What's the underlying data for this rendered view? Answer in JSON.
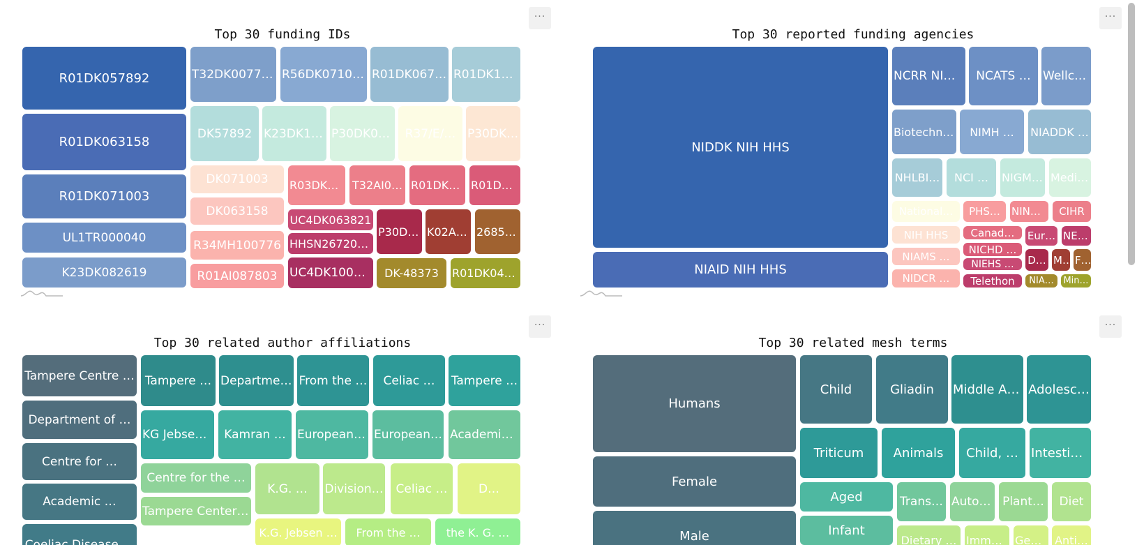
{
  "menu_label": "···",
  "panels": [
    {
      "id": "funding-ids",
      "title": "Top 30 funding IDs",
      "chart_data": {
        "type": "treemap",
        "title": "Top 30 funding IDs",
        "items": [
          {
            "label": "R01DK057892",
            "color": "#3565ae"
          },
          {
            "label": "R01DK063158",
            "color": "#4a6cb5"
          },
          {
            "label": "R01DK071003",
            "color": "#5b7fbb"
          },
          {
            "label": "UL1TR000040",
            "color": "#6d90c5"
          },
          {
            "label": "K23DK082619",
            "color": "#7b9cca"
          },
          {
            "label": "T32DK007760",
            "color": "#7e9fca"
          },
          {
            "label": "R56DK071003",
            "color": "#88a9d2"
          },
          {
            "label": "R01DK067180",
            "color": "#97bcd3"
          },
          {
            "label": "R01DK104…",
            "color": "#a6ccd8"
          },
          {
            "label": "DK57892",
            "color": "#b3dddc"
          },
          {
            "label": "K23DK119…",
            "color": "#c4eade"
          },
          {
            "label": "P30DK04…",
            "color": "#d8f3e1"
          },
          {
            "label": "R37/E/…",
            "color": "#fdfce4"
          },
          {
            "label": "P30DK0…",
            "color": "#fde7d4"
          },
          {
            "label": "DK071003",
            "color": "#fde2d3"
          },
          {
            "label": "DK063158",
            "color": "#fcc6bf"
          },
          {
            "label": "R34MH100776",
            "color": "#fbb3ad"
          },
          {
            "label": "R01AI087803",
            "color": "#f89d9f"
          },
          {
            "label": "R03DK0…",
            "color": "#f28a92"
          },
          {
            "label": "T32AI0…",
            "color": "#ec7f8a"
          },
          {
            "label": "R01DK47…",
            "color": "#e46c80"
          },
          {
            "label": "R01DK…",
            "color": "#da5b78"
          },
          {
            "label": "UC4DK063821",
            "color": "#c84a74"
          },
          {
            "label": "HHSN267200…",
            "color": "#bc3d6b"
          },
          {
            "label": "UC4DK100238",
            "color": "#a82f61"
          },
          {
            "label": "P30DK…",
            "color": "#a8294b"
          },
          {
            "label": "K02AI…",
            "color": "#a03e33"
          },
          {
            "label": "268541",
            "color": "#a06230"
          },
          {
            "label": "DK-48373",
            "color": "#a38a2c"
          },
          {
            "label": "R01DK048…",
            "color": "#9ea32c"
          }
        ]
      }
    },
    {
      "id": "funding-agencies",
      "title": "Top 30 reported funding agencies",
      "chart_data": {
        "type": "treemap",
        "title": "Top 30 reported funding agencies",
        "items": [
          {
            "label": "NIDDK NIH HHS",
            "color": "#3565ae"
          },
          {
            "label": "NIAID NIH HHS",
            "color": "#4a6cb5"
          },
          {
            "label": "NCRR NIH…",
            "color": "#5b7fbb"
          },
          {
            "label": "NCATS …",
            "color": "#6d90c5"
          },
          {
            "label": "Wellco…",
            "color": "#7b9cca"
          },
          {
            "label": "Biotechno…",
            "color": "#7e9fca"
          },
          {
            "label": "NIMH …",
            "color": "#88a9d2"
          },
          {
            "label": "NIADDK …",
            "color": "#97bcd3"
          },
          {
            "label": "NHLBI…",
            "color": "#a6ccd8"
          },
          {
            "label": "NCI …",
            "color": "#b3dddc"
          },
          {
            "label": "NIGMS…",
            "color": "#c4eade"
          },
          {
            "label": "Medic…",
            "color": "#d8f3e1"
          },
          {
            "label": "National…",
            "color": "#fdfce4"
          },
          {
            "label": "PHS…",
            "color": "#f89d9f"
          },
          {
            "label": "NIND…",
            "color": "#f28a92"
          },
          {
            "label": "CIHR",
            "color": "#ec7f8a"
          },
          {
            "label": "NIH HHS",
            "color": "#fde2d3"
          },
          {
            "label": "Canad…",
            "color": "#e46c80"
          },
          {
            "label": "Eur…",
            "color": "#c84a74"
          },
          {
            "label": "NEI…",
            "color": "#bc3d6b"
          },
          {
            "label": "NIAMS …",
            "color": "#fcc6bf"
          },
          {
            "label": "NICHD …",
            "color": "#da5b78"
          },
          {
            "label": "NIEHS …",
            "color": "#c84a74"
          },
          {
            "label": "D…",
            "color": "#a8294b"
          },
          {
            "label": "M…",
            "color": "#a03e33"
          },
          {
            "label": "F…",
            "color": "#a06230"
          },
          {
            "label": "NIDCR …",
            "color": "#fbb3ad"
          },
          {
            "label": "Telethon",
            "color": "#bc3d6b"
          },
          {
            "label": "NIA…",
            "color": "#a38a2c"
          },
          {
            "label": "Min…",
            "color": "#9ea32c"
          }
        ]
      }
    },
    {
      "id": "author-affiliations",
      "title": "Top 30 related author affiliations",
      "chart_data": {
        "type": "treemap",
        "title": "Top 30 related author affiliations",
        "items": [
          {
            "label": "Tampere Centre …",
            "color": "#546d7b"
          },
          {
            "label": "Department of …",
            "color": "#4f6e7d"
          },
          {
            "label": "Centre for …",
            "color": "#4a7280"
          },
          {
            "label": "Academic …",
            "color": "#467784"
          },
          {
            "label": "Coeliac Disease …",
            "color": "#417b88"
          },
          {
            "label": "Tampere …",
            "color": "#2f8b8b"
          },
          {
            "label": "Department…",
            "color": "#2e8f8f"
          },
          {
            "label": "From the …",
            "color": "#2e9494"
          },
          {
            "label": "Celiac …",
            "color": "#2e9a98"
          },
          {
            "label": "Tampere …",
            "color": "#2fa29c"
          },
          {
            "label": "KG Jebsen …",
            "color": "#36a9a0"
          },
          {
            "label": "Kamran …",
            "color": "#42b3a2"
          },
          {
            "label": "European …",
            "color": "#4eb8a1"
          },
          {
            "label": "European …",
            "color": "#5cbd9f"
          },
          {
            "label": "Academic …",
            "color": "#71c79c"
          },
          {
            "label": "Centre for the …",
            "color": "#8fd39a"
          },
          {
            "label": "Tampere Center …",
            "color": "#9bd993"
          },
          {
            "label": "K.G. …",
            "color": "#b1e38f"
          },
          {
            "label": "Division…",
            "color": "#bce98c"
          },
          {
            "label": "Celiac …",
            "color": "#c7ee88"
          },
          {
            "label": "D…",
            "color": "#e1f386"
          },
          {
            "label": "K.G. Jebsen …",
            "color": "#e8f57f"
          },
          {
            "label": "From the …",
            "color": "#b5ed84"
          },
          {
            "label": "the K. G. …",
            "color": "#8ff094"
          }
        ]
      }
    },
    {
      "id": "mesh-terms",
      "title": "Top 30 related mesh terms",
      "chart_data": {
        "type": "treemap",
        "title": "Top 30 related mesh terms",
        "items": [
          {
            "label": "Humans",
            "color": "#546d7b"
          },
          {
            "label": "Female",
            "color": "#4f6e7d"
          },
          {
            "label": "Male",
            "color": "#4a7280"
          },
          {
            "label": "Child",
            "color": "#467784"
          },
          {
            "label": "Gliadin",
            "color": "#417b88"
          },
          {
            "label": "Middle Aged",
            "color": "#2e8f8f"
          },
          {
            "label": "Adolesc…",
            "color": "#2e9494"
          },
          {
            "label": "Triticum",
            "color": "#2e9a98"
          },
          {
            "label": "Animals",
            "color": "#2fa29c"
          },
          {
            "label": "Child, …",
            "color": "#36a9a0"
          },
          {
            "label": "Intestin…",
            "color": "#42b3a2"
          },
          {
            "label": "Aged",
            "color": "#4eb8a1"
          },
          {
            "label": "Infant",
            "color": "#5cbd9f"
          },
          {
            "label": "Trans…",
            "color": "#71c79c"
          },
          {
            "label": "Autoa…",
            "color": "#8fd39a"
          },
          {
            "label": "Plant…",
            "color": "#9bd993"
          },
          {
            "label": "Diet",
            "color": "#b1e38f"
          },
          {
            "label": "Dietary …",
            "color": "#bce98c"
          },
          {
            "label": "Immu…",
            "color": "#c7ee88"
          },
          {
            "label": "Gen…",
            "color": "#d4f186"
          },
          {
            "label": "Anti…",
            "color": "#e1f386"
          }
        ]
      }
    }
  ]
}
